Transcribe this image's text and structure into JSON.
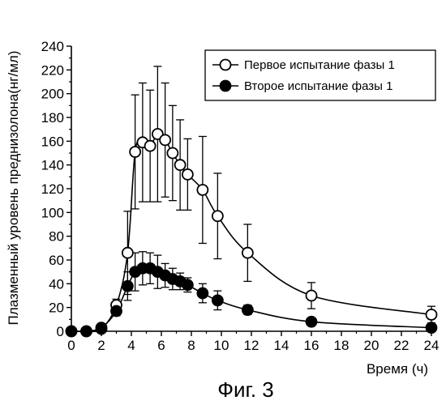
{
  "chart_data": {
    "type": "line",
    "title": "",
    "xlabel": "Время (ч)",
    "ylabel": "Плазменный уровень преднизолона(нг/мл)",
    "xlim": [
      0,
      24
    ],
    "ylim": [
      0,
      240
    ],
    "xticks": [
      "0",
      "2",
      "4",
      "6",
      "8",
      "10",
      "12",
      "14",
      "16",
      "18",
      "20",
      "22",
      "24"
    ],
    "yticks": [
      "0",
      "20",
      "40",
      "60",
      "80",
      "100",
      "120",
      "140",
      "160",
      "180",
      "200",
      "220",
      "240"
    ],
    "grid": false,
    "legend_position": "top-right",
    "error_bars": true,
    "series": [
      {
        "name": "Первое испытание фазы 1",
        "marker": "open-circle",
        "color": "#000000",
        "points": [
          {
            "x": 0,
            "y": 0,
            "err": 0
          },
          {
            "x": 1,
            "y": 0,
            "err": 0
          },
          {
            "x": 2,
            "y": 2,
            "err": 0
          },
          {
            "x": 3,
            "y": 22,
            "err": 5
          },
          {
            "x": 3.75,
            "y": 66,
            "err": 35
          },
          {
            "x": 4.25,
            "y": 151,
            "err": 48
          },
          {
            "x": 4.75,
            "y": 159,
            "err": 50
          },
          {
            "x": 5.25,
            "y": 156,
            "err": 47
          },
          {
            "x": 5.75,
            "y": 166,
            "err": 57
          },
          {
            "x": 6.25,
            "y": 161,
            "err": 48
          },
          {
            "x": 6.75,
            "y": 150,
            "err": 40
          },
          {
            "x": 7.25,
            "y": 140,
            "err": 38
          },
          {
            "x": 7.75,
            "y": 132,
            "err": 30
          },
          {
            "x": 8.75,
            "y": 119,
            "err": 45
          },
          {
            "x": 9.75,
            "y": 97,
            "err": 36
          },
          {
            "x": 11.75,
            "y": 66,
            "err": 24
          },
          {
            "x": 16,
            "y": 30,
            "err": 11
          },
          {
            "x": 24,
            "y": 14,
            "err": 7
          }
        ]
      },
      {
        "name": "Второе испытание фазы 1",
        "marker": "filled-circle",
        "color": "#000000",
        "points": [
          {
            "x": 0,
            "y": 0,
            "err": 0
          },
          {
            "x": 1,
            "y": 0,
            "err": 0
          },
          {
            "x": 2,
            "y": 3,
            "err": 0
          },
          {
            "x": 3,
            "y": 17,
            "err": 4
          },
          {
            "x": 3.75,
            "y": 38,
            "err": 12
          },
          {
            "x": 4.25,
            "y": 50,
            "err": 16
          },
          {
            "x": 4.75,
            "y": 53,
            "err": 14
          },
          {
            "x": 5.25,
            "y": 53,
            "err": 13
          },
          {
            "x": 5.75,
            "y": 50,
            "err": 14
          },
          {
            "x": 6.25,
            "y": 47,
            "err": 10
          },
          {
            "x": 6.75,
            "y": 44,
            "err": 9
          },
          {
            "x": 7.25,
            "y": 42,
            "err": 7
          },
          {
            "x": 7.75,
            "y": 39,
            "err": 6
          },
          {
            "x": 8.75,
            "y": 32,
            "err": 8
          },
          {
            "x": 9.75,
            "y": 26,
            "err": 8
          },
          {
            "x": 11.75,
            "y": 18,
            "err": 4
          },
          {
            "x": 16,
            "y": 8,
            "err": 2
          },
          {
            "x": 24,
            "y": 3,
            "err": 2
          }
        ]
      }
    ]
  },
  "caption": "Фиг. 3"
}
